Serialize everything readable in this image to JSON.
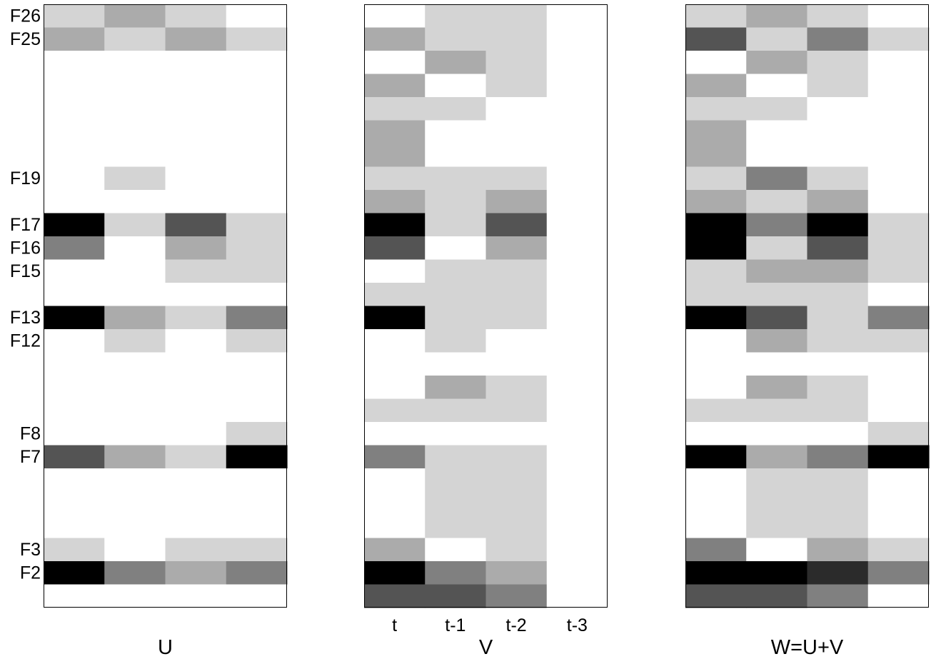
{
  "chart_data": {
    "type": "heatmap",
    "colormap": "gray_r",
    "value_scale": "0 = white, 1 = black",
    "grid": false,
    "n_rows": 26,
    "row_order": "top-to-bottom",
    "row_labels": [
      "F26",
      "F25",
      "",
      "",
      "",
      "",
      "",
      "F19",
      "",
      "F17",
      "F16",
      "F15",
      "",
      "F13",
      "F12",
      "",
      "",
      "",
      "F8",
      "F7",
      "",
      "",
      "",
      "F3",
      "F2",
      ""
    ],
    "col_labels": [
      "t",
      "t-1",
      "t-2",
      "t-3"
    ],
    "panels": [
      {
        "title": "U",
        "show_row_labels": true,
        "show_col_labels": false,
        "values": [
          [
            0.17,
            0.33,
            0.17,
            0
          ],
          [
            0.33,
            0.17,
            0.33,
            0.17
          ],
          [
            0,
            0,
            0,
            0
          ],
          [
            0,
            0,
            0,
            0
          ],
          [
            0,
            0,
            0,
            0
          ],
          [
            0,
            0,
            0,
            0
          ],
          [
            0,
            0,
            0,
            0
          ],
          [
            0,
            0.17,
            0,
            0
          ],
          [
            0,
            0,
            0,
            0
          ],
          [
            1,
            0.17,
            0.67,
            0.17
          ],
          [
            0.5,
            0,
            0.33,
            0.17
          ],
          [
            0,
            0,
            0.17,
            0.17
          ],
          [
            0,
            0,
            0,
            0
          ],
          [
            1,
            0.33,
            0.17,
            0.5
          ],
          [
            0,
            0.17,
            0,
            0.17
          ],
          [
            0,
            0,
            0,
            0
          ],
          [
            0,
            0,
            0,
            0
          ],
          [
            0,
            0,
            0,
            0
          ],
          [
            0,
            0,
            0,
            0.17
          ],
          [
            0.67,
            0.33,
            0.17,
            1
          ],
          [
            0,
            0,
            0,
            0
          ],
          [
            0,
            0,
            0,
            0
          ],
          [
            0,
            0,
            0,
            0
          ],
          [
            0.17,
            0,
            0.17,
            0.17
          ],
          [
            1,
            0.5,
            0.33,
            0.5
          ],
          [
            0,
            0,
            0,
            0
          ]
        ]
      },
      {
        "title": "V",
        "show_row_labels": false,
        "show_col_labels": true,
        "values": [
          [
            0,
            0.17,
            0.17,
            0
          ],
          [
            0.33,
            0.17,
            0.17,
            0
          ],
          [
            0,
            0.33,
            0.17,
            0
          ],
          [
            0.33,
            0,
            0.17,
            0
          ],
          [
            0.17,
            0.17,
            0,
            0
          ],
          [
            0.33,
            0,
            0,
            0
          ],
          [
            0.33,
            0,
            0,
            0
          ],
          [
            0.17,
            0.17,
            0.17,
            0
          ],
          [
            0.33,
            0.17,
            0.33,
            0
          ],
          [
            1,
            0.17,
            0.67,
            0
          ],
          [
            0.67,
            0,
            0.33,
            0
          ],
          [
            0,
            0.17,
            0.17,
            0
          ],
          [
            0.17,
            0.17,
            0.17,
            0
          ],
          [
            1,
            0.17,
            0.17,
            0
          ],
          [
            0,
            0.17,
            0,
            0
          ],
          [
            0,
            0,
            0,
            0
          ],
          [
            0,
            0.33,
            0.17,
            0
          ],
          [
            0.17,
            0.17,
            0.17,
            0
          ],
          [
            0,
            0,
            0,
            0
          ],
          [
            0.5,
            0.17,
            0.17,
            0
          ],
          [
            0,
            0.17,
            0.17,
            0
          ],
          [
            0,
            0.17,
            0.17,
            0
          ],
          [
            0,
            0.17,
            0.17,
            0
          ],
          [
            0.33,
            0,
            0.17,
            0
          ],
          [
            1,
            0.5,
            0.33,
            0
          ],
          [
            0.67,
            0.67,
            0.5,
            0
          ]
        ]
      },
      {
        "title": "W=U+V",
        "show_row_labels": false,
        "show_col_labels": false,
        "values": [
          [
            0.17,
            0.33,
            0.17,
            0
          ],
          [
            0.67,
            0.17,
            0.5,
            0.17
          ],
          [
            0,
            0.33,
            0.17,
            0
          ],
          [
            0.33,
            0,
            0.17,
            0
          ],
          [
            0.17,
            0.17,
            0,
            0
          ],
          [
            0.33,
            0,
            0,
            0
          ],
          [
            0.33,
            0,
            0,
            0
          ],
          [
            0.17,
            0.5,
            0.17,
            0
          ],
          [
            0.33,
            0.17,
            0.33,
            0
          ],
          [
            1,
            0.5,
            1,
            0.17
          ],
          [
            1,
            0.17,
            0.67,
            0.17
          ],
          [
            0.17,
            0.33,
            0.33,
            0.17
          ],
          [
            0.17,
            0.17,
            0.17,
            0
          ],
          [
            1,
            0.67,
            0.17,
            0.5
          ],
          [
            0,
            0.33,
            0.17,
            0.17
          ],
          [
            0,
            0,
            0,
            0
          ],
          [
            0,
            0.33,
            0.17,
            0
          ],
          [
            0.17,
            0.17,
            0.17,
            0
          ],
          [
            0,
            0,
            0,
            0.17
          ],
          [
            1,
            0.33,
            0.5,
            1
          ],
          [
            0,
            0.17,
            0.17,
            0
          ],
          [
            0,
            0.17,
            0.17,
            0
          ],
          [
            0,
            0.17,
            0.17,
            0
          ],
          [
            0.5,
            0,
            0.33,
            0.17
          ],
          [
            1,
            1,
            0.83,
            0.5
          ],
          [
            0.67,
            0.67,
            0.5,
            0
          ]
        ]
      }
    ]
  }
}
